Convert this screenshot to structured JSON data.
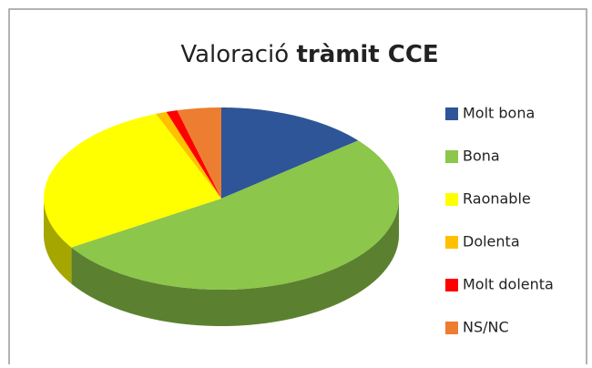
{
  "chart_data": {
    "type": "pie3d",
    "title": [
      "Valoració",
      "tràmit CCE"
    ],
    "categories": [
      "Molt bona",
      "Bona",
      "Raonable",
      "Dolenta",
      "Molt dolenta",
      "NS/NC"
    ],
    "values": [
      14,
      52,
      28,
      1,
      1,
      4
    ],
    "colors": [
      "#2e5597",
      "#8cc64a",
      "#ffff00",
      "#ffc000",
      "#ff0000",
      "#ed7d31"
    ],
    "legend": "right"
  }
}
